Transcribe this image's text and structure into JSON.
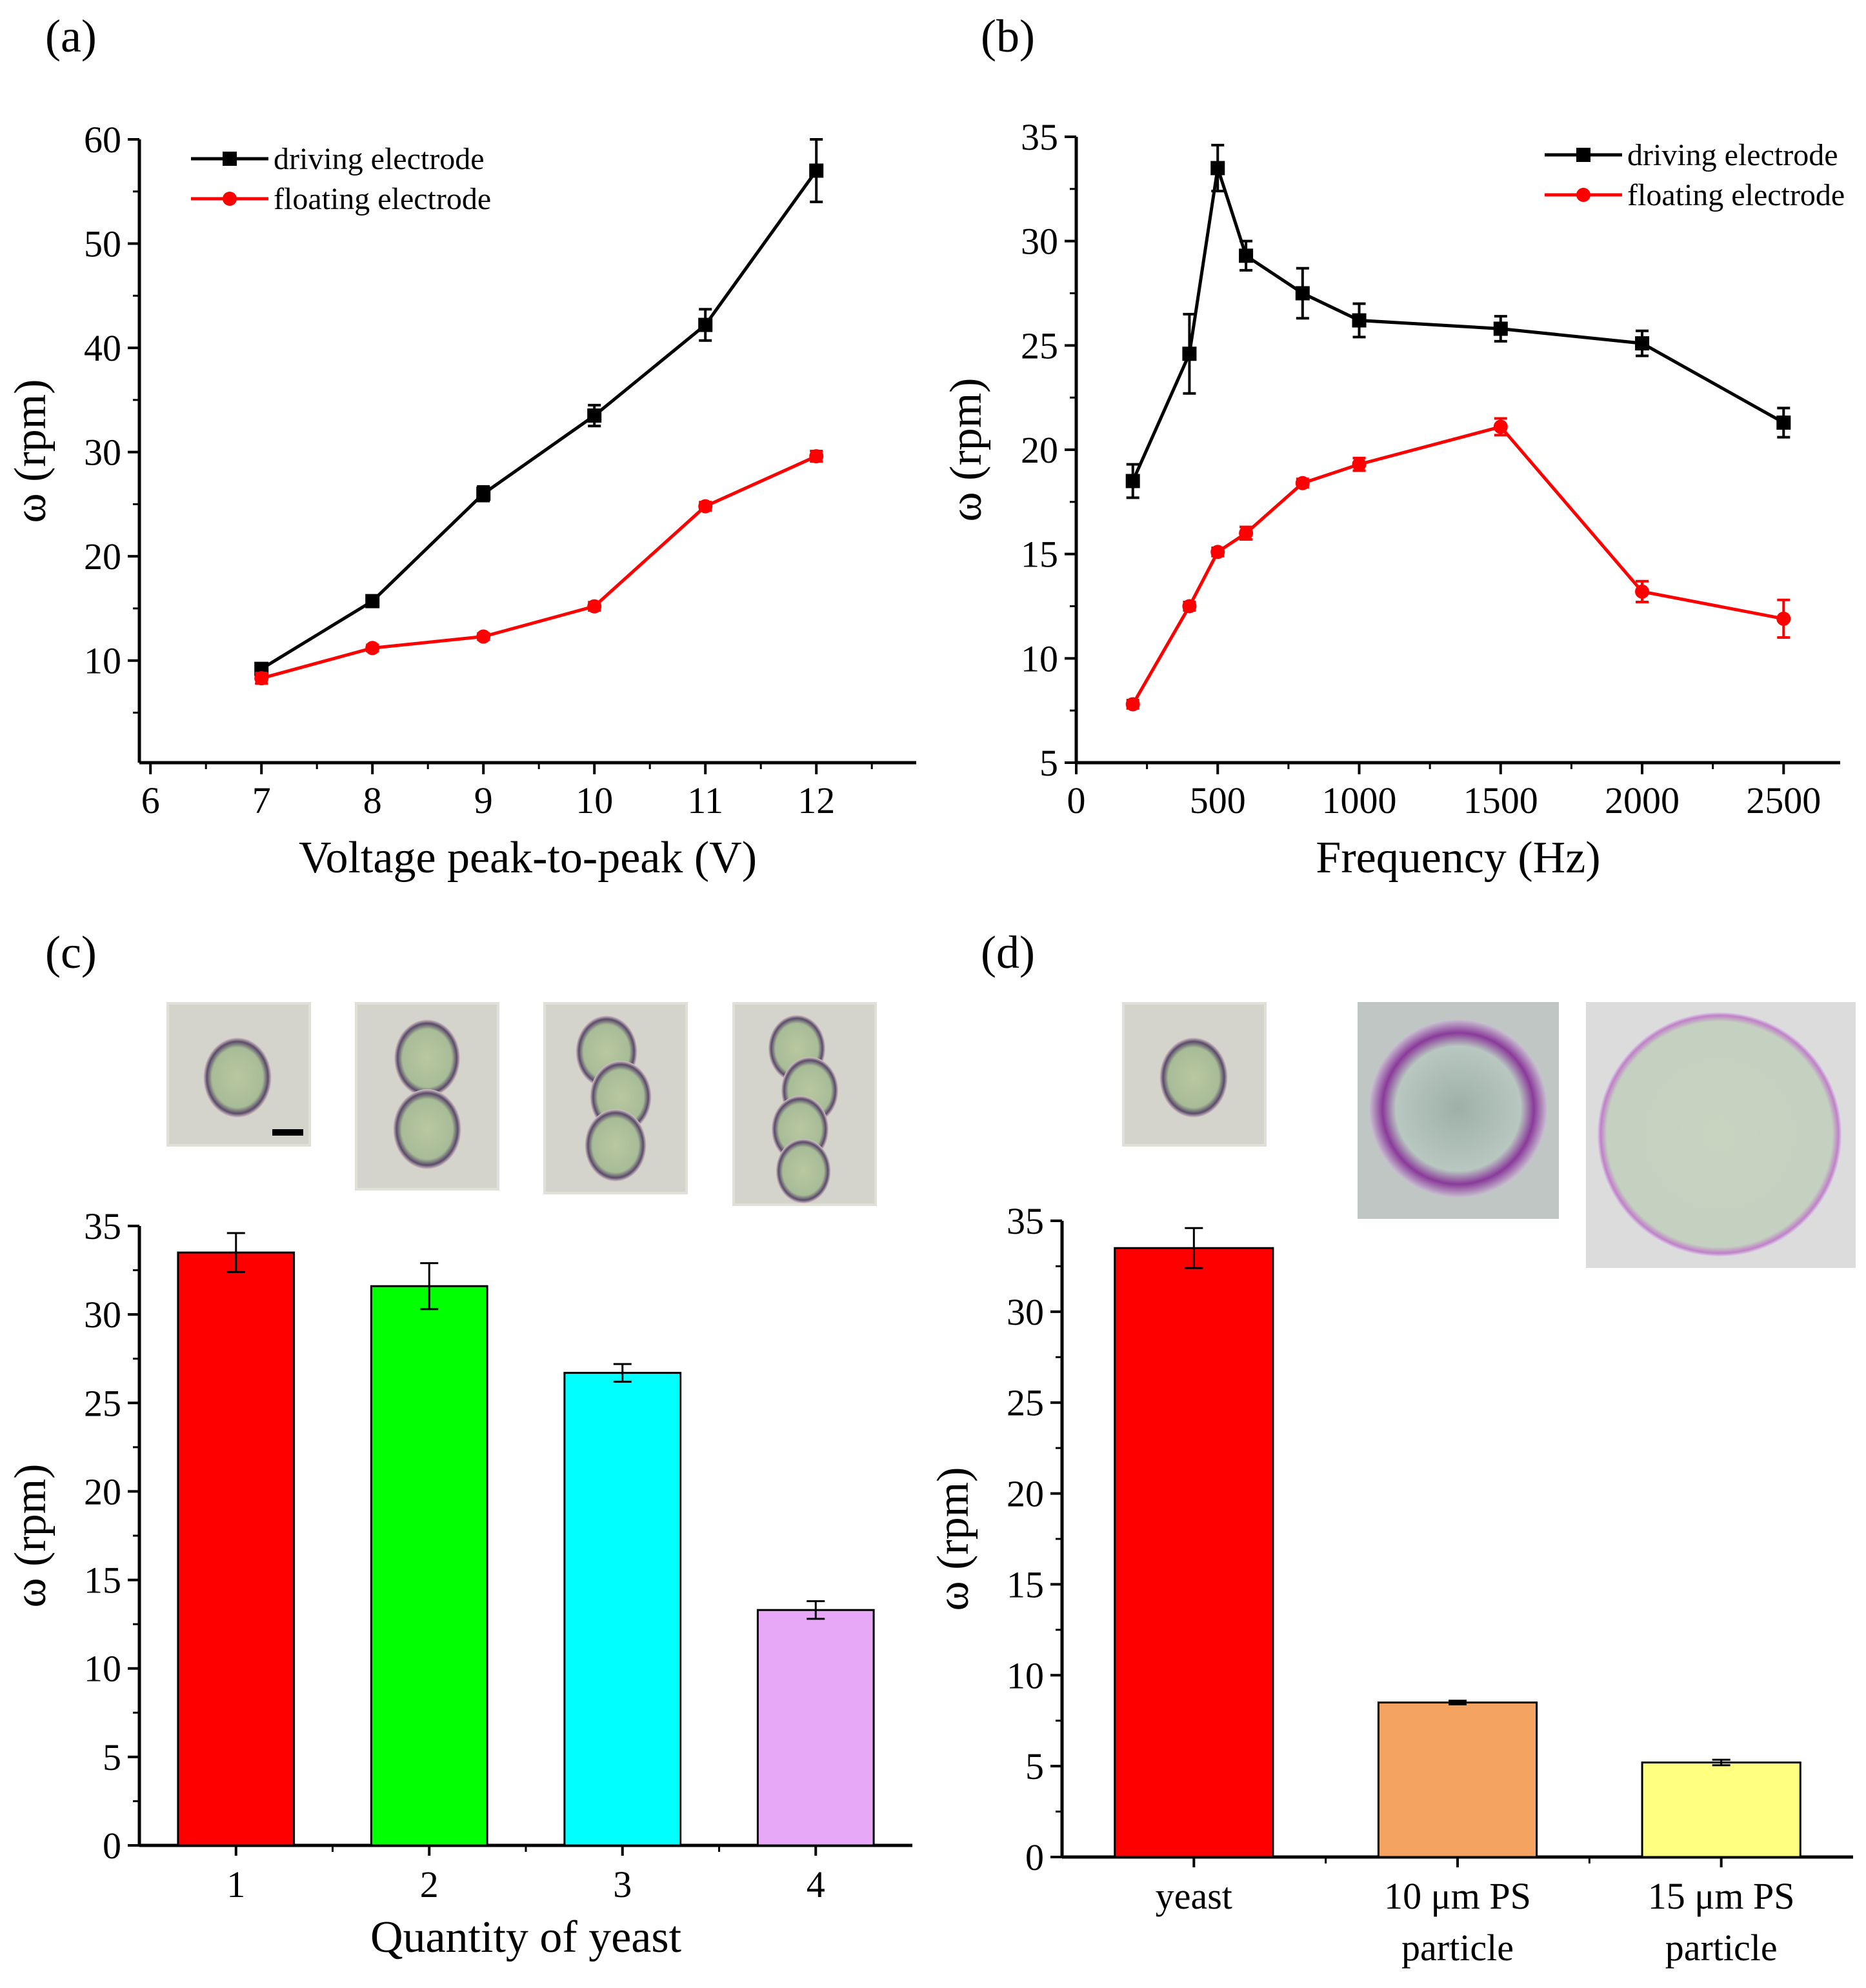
{
  "panel_labels": [
    "(a)",
    "(b)",
    "(c)",
    "(d)"
  ],
  "chart_data": [
    {
      "type": "line",
      "panel": "(a)",
      "xlabel": "Voltage peak-to-peak (V)",
      "ylabel": "ω (rpm)",
      "xlim": [
        5.9,
        12.9
      ],
      "ylim": [
        0.2,
        60
      ],
      "xticks": [
        6,
        7,
        8,
        9,
        10,
        11,
        12
      ],
      "yticks": [
        10,
        20,
        30,
        40,
        50,
        60
      ],
      "legend_position": "top-left",
      "x": [
        7,
        8,
        9,
        10,
        11,
        12
      ],
      "series": [
        {
          "name": "driving electrode",
          "color": "#000000",
          "marker": "square",
          "values": [
            9.2,
            15.7,
            26.0,
            33.5,
            42.2,
            57.0
          ],
          "errors": [
            0.5,
            0.4,
            0.7,
            1.0,
            1.5,
            3.0
          ]
        },
        {
          "name": "floating electrode",
          "color": "#ff0000",
          "marker": "circle",
          "values": [
            8.3,
            11.2,
            12.3,
            15.2,
            24.8,
            29.6
          ],
          "errors": [
            0.5,
            0.3,
            0.3,
            0.4,
            0.4,
            0.5
          ]
        }
      ]
    },
    {
      "type": "line",
      "panel": "(b)",
      "xlabel": "Frequency (Hz)",
      "ylabel": "ω (rpm)",
      "xlim": [
        0,
        2700
      ],
      "ylim": [
        5,
        35
      ],
      "xticks": [
        0,
        500,
        1000,
        1500,
        2000,
        2500
      ],
      "yticks": [
        5,
        10,
        15,
        20,
        25,
        30,
        35
      ],
      "legend_position": "top-right",
      "x": [
        200,
        400,
        500,
        600,
        800,
        1000,
        1500,
        2000,
        2500
      ],
      "series": [
        {
          "name": "driving electrode",
          "color": "#000000",
          "marker": "square",
          "values": [
            18.5,
            24.6,
            33.5,
            29.3,
            27.5,
            26.2,
            25.8,
            25.1,
            21.3
          ],
          "errors": [
            0.8,
            1.9,
            1.1,
            0.7,
            1.2,
            0.8,
            0.6,
            0.6,
            0.7
          ]
        },
        {
          "name": "floating electrode",
          "color": "#ff0000",
          "marker": "circle",
          "values": [
            7.8,
            12.5,
            15.1,
            16.0,
            18.4,
            19.3,
            21.1,
            13.2,
            11.9
          ],
          "errors": [
            0.2,
            0.2,
            0.2,
            0.3,
            0.2,
            0.3,
            0.4,
            0.5,
            0.9
          ]
        }
      ]
    },
    {
      "type": "bar",
      "panel": "(c)",
      "xlabel": "Quantity of yeast",
      "ylabel": "ω (rpm)",
      "ylim": [
        0,
        35
      ],
      "yticks": [
        0,
        5,
        10,
        15,
        20,
        25,
        30,
        35
      ],
      "categories": [
        "1",
        "2",
        "3",
        "4"
      ],
      "values": [
        33.5,
        31.6,
        26.7,
        13.3
      ],
      "errors": [
        1.1,
        1.3,
        0.5,
        0.5
      ],
      "colors": [
        "#ff0000",
        "#00ff00",
        "#00ffff",
        "#e8a8f8"
      ]
    },
    {
      "type": "bar",
      "panel": "(d)",
      "xlabel": "",
      "ylabel": "ω (rpm)",
      "ylim": [
        0,
        35
      ],
      "yticks": [
        0,
        5,
        10,
        15,
        20,
        25,
        30,
        35
      ],
      "categories": [
        [
          "yeast"
        ],
        [
          "10 μm PS",
          "particle"
        ],
        [
          "15 μm PS",
          "particle"
        ]
      ],
      "values": [
        33.5,
        8.5,
        5.2
      ],
      "errors": [
        1.1,
        0.1,
        0.15
      ],
      "colors": [
        "#ff0000",
        "#f4a460",
        "#ffff80"
      ]
    }
  ]
}
